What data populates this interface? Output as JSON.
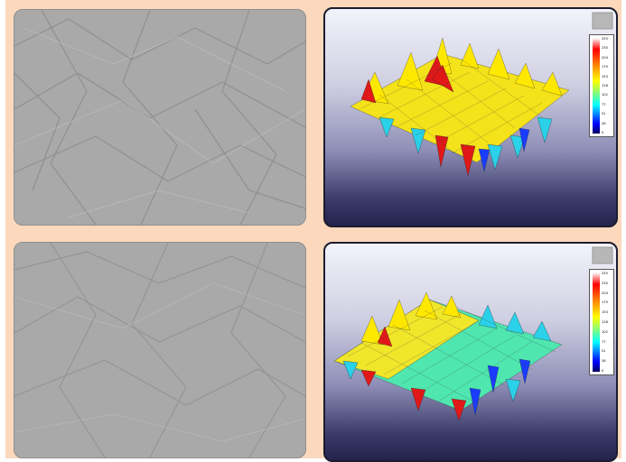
{
  "figure": {
    "background_color": "#fcd9bd",
    "photo_color": "#a9a9a9",
    "panels": [
      {
        "kind": "grayscale-skin-texture-photo",
        "row": "top"
      },
      {
        "kind": "3d-surface-height-map",
        "row": "top",
        "colormap": "jet",
        "colorbar_ticks": [
          "255",
          "230",
          "204",
          "179",
          "153",
          "128",
          "102",
          "77",
          "51",
          "26",
          "0"
        ]
      },
      {
        "kind": "grayscale-skin-texture-photo",
        "row": "bottom"
      },
      {
        "kind": "3d-surface-height-map",
        "row": "bottom",
        "colormap": "jet",
        "colorbar_ticks": [
          "255",
          "230",
          "204",
          "179",
          "153",
          "128",
          "102",
          "77",
          "51",
          "26",
          "0"
        ]
      }
    ]
  }
}
